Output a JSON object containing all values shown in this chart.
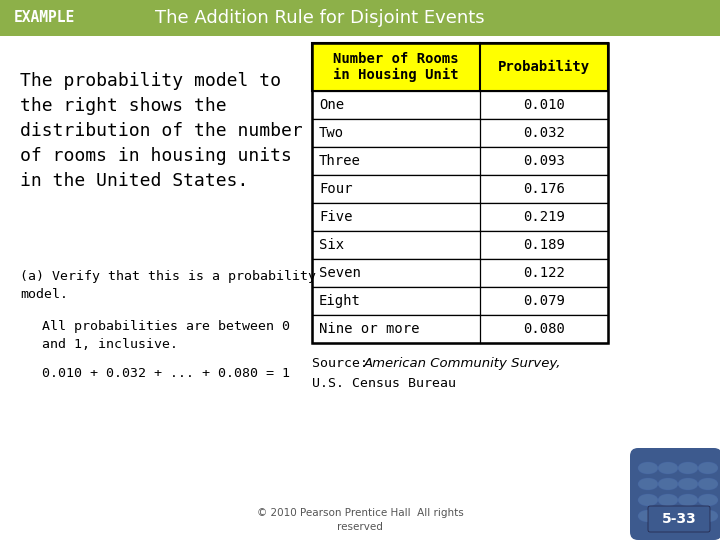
{
  "title_left": "EXAMPLE",
  "title_right": "The Addition Rule for Disjoint Events",
  "header_bg": "#8db049",
  "body_bg": "#ffffff",
  "table_header_bg": "#ffff00",
  "table_header_col1": "Number of Rooms\nin Housing Unit",
  "table_header_col2": "Probability",
  "table_rows": [
    [
      "One",
      "0.010"
    ],
    [
      "Two",
      "0.032"
    ],
    [
      "Three",
      "0.093"
    ],
    [
      "Four",
      "0.176"
    ],
    [
      "Five",
      "0.219"
    ],
    [
      "Six",
      "0.189"
    ],
    [
      "Seven",
      "0.122"
    ],
    [
      "Eight",
      "0.079"
    ],
    [
      "Nine or more",
      "0.080"
    ]
  ],
  "left_text_main": "The probability model to\nthe right shows the\ndistribution of the number\nof rooms in housing units\nin the United States.",
  "left_text_a": "(a) Verify that this is a probability\nmodel.",
  "left_text_b": "All probabilities are between 0\nand 1, inclusive.",
  "left_text_c": "0.010 + 0.032 + ... + 0.080 = 1",
  "source_line1": "Source: ",
  "source_italic": "American Community Survey,",
  "source_line2": "U.S. Census Bureau",
  "footer_text": "© 2010 Pearson Prentice Hall  All rights\nreserved",
  "badge_text": "5-33",
  "badge_bg": "#3d5a8e",
  "table_border": "#000000",
  "font_color": "#000000"
}
